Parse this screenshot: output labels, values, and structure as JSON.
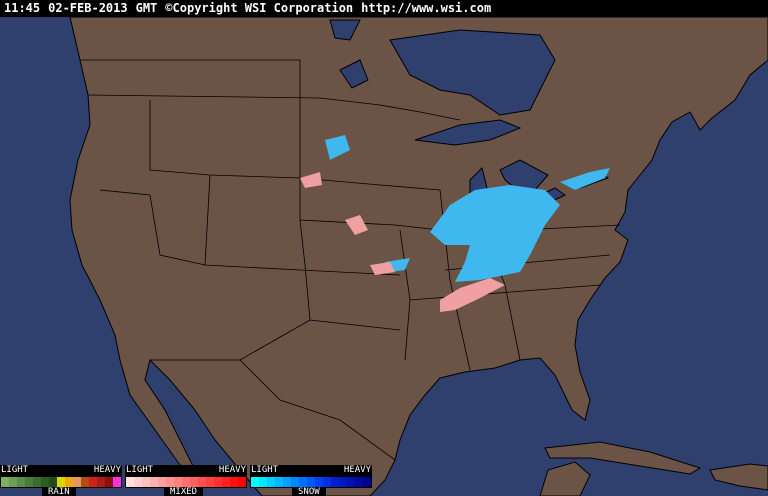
{
  "header": {
    "time": "11:45",
    "date": "02-FEB-2013",
    "zone": "GMT",
    "copyright": "©Copyright WSI Corporation",
    "url": "http://www.wsi.com"
  },
  "colors": {
    "ocean": "#2f3f6e",
    "land": "#6b5446",
    "borders": "#000000",
    "snow": "#3fb8f0",
    "mixed": "#f0a0a0"
  },
  "legend": [
    {
      "name": "RAIN",
      "light": "LIGHT",
      "heavy": "HEAVY",
      "colors": [
        "#7cae63",
        "#6a9f55",
        "#5a8e48",
        "#4a7d3b",
        "#3d6c30",
        "#2e5c25",
        "#214b1a",
        "#d8d800",
        "#f0a810",
        "#e09860",
        "#b05010",
        "#d02020",
        "#b01818",
        "#901010",
        "#ff30e0"
      ]
    },
    {
      "name": "MIXED",
      "light": "LIGHT",
      "heavy": "HEAVY",
      "colors": [
        "#ffe0e0",
        "#ffd0d0",
        "#ffc0c0",
        "#ffb0b0",
        "#ffa0a0",
        "#ff9090",
        "#ff8080",
        "#ff7070",
        "#ff6060",
        "#ff5050",
        "#ff4040",
        "#ff3030",
        "#ff2020",
        "#ff1010",
        "#ff0000"
      ]
    },
    {
      "name": "SNOW",
      "light": "LIGHT",
      "heavy": "HEAVY",
      "colors": [
        "#00ffff",
        "#00e8ff",
        "#00d0ff",
        "#00b8ff",
        "#00a0ff",
        "#0088ff",
        "#0070ff",
        "#0058ff",
        "#0040f0",
        "#0030e0",
        "#0020d0",
        "#0018c0",
        "#0010b0",
        "#0008a0",
        "#000090"
      ]
    }
  ]
}
